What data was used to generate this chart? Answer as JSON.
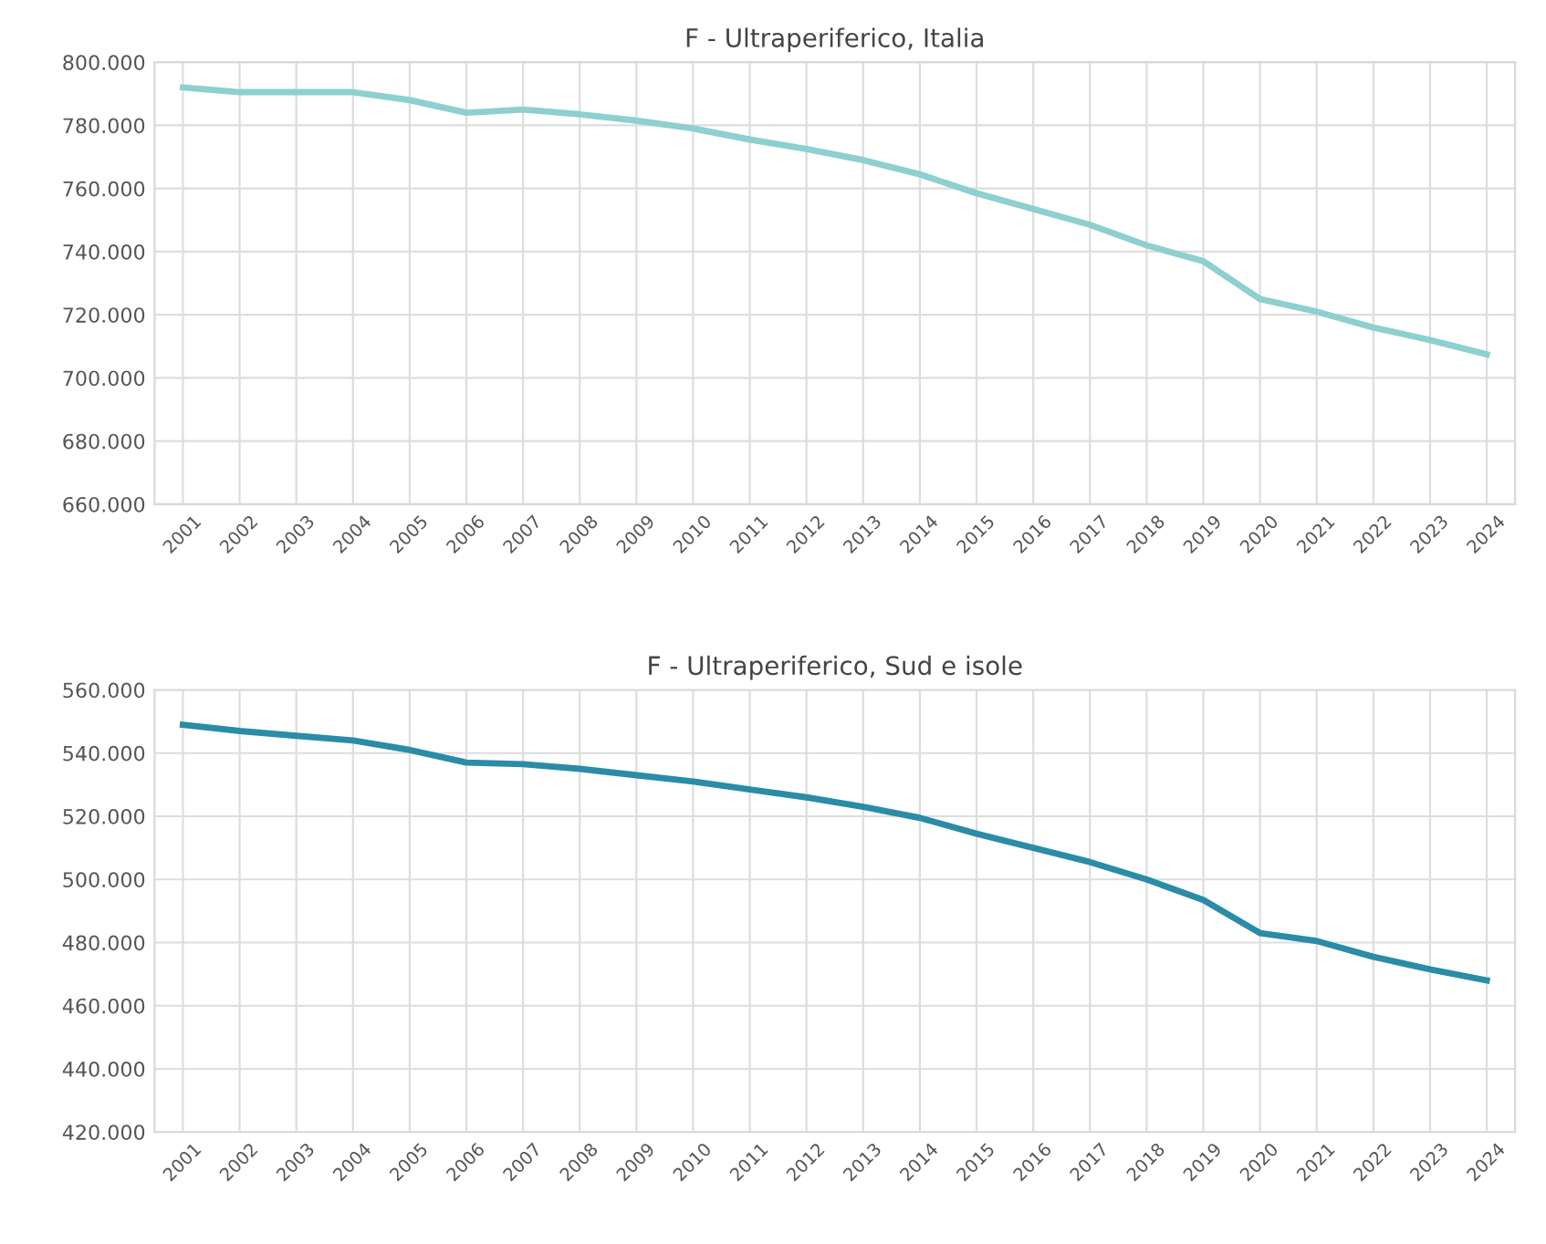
{
  "chart_data": [
    {
      "type": "line",
      "title": "F - Ultraperiferico, Italia",
      "categories": [
        "2001",
        "2002",
        "2003",
        "2004",
        "2005",
        "2006",
        "2007",
        "2008",
        "2009",
        "2010",
        "2011",
        "2012",
        "2013",
        "2014",
        "2015",
        "2016",
        "2017",
        "2018",
        "2019",
        "2020",
        "2021",
        "2022",
        "2023",
        "2024"
      ],
      "series": [
        {
          "color": "#8ecfcf",
          "values": [
            792000,
            790500,
            790500,
            790500,
            788000,
            784000,
            785000,
            783500,
            781500,
            779000,
            775500,
            772500,
            769000,
            764500,
            758500,
            753500,
            748500,
            742000,
            737000,
            725000,
            721000,
            716000,
            712000,
            707500
          ]
        }
      ],
      "ylim": [
        660000,
        800000
      ],
      "yticks": [
        {
          "value": 660000,
          "label": "660.000"
        },
        {
          "value": 680000,
          "label": "680.000"
        },
        {
          "value": 700000,
          "label": "700.000"
        },
        {
          "value": 720000,
          "label": "720.000"
        },
        {
          "value": 740000,
          "label": "740.000"
        },
        {
          "value": 760000,
          "label": "760.000"
        },
        {
          "value": 780000,
          "label": "780.000"
        },
        {
          "value": 800000,
          "label": "800.000"
        }
      ],
      "grid": true,
      "legend": false
    },
    {
      "type": "line",
      "title": "F - Ultraperiferico, Sud e isole",
      "categories": [
        "2001",
        "2002",
        "2003",
        "2004",
        "2005",
        "2006",
        "2007",
        "2008",
        "2009",
        "2010",
        "2011",
        "2012",
        "2013",
        "2014",
        "2015",
        "2016",
        "2017",
        "2018",
        "2019",
        "2020",
        "2021",
        "2022",
        "2023",
        "2024"
      ],
      "series": [
        {
          "color": "#2a8ca6",
          "values": [
            549000,
            547000,
            545500,
            544000,
            541000,
            537000,
            536500,
            535000,
            533000,
            531000,
            528500,
            526000,
            523000,
            519500,
            514500,
            510000,
            505500,
            500000,
            493500,
            483000,
            480500,
            475500,
            471500,
            468000
          ]
        }
      ],
      "ylim": [
        420000,
        560000
      ],
      "yticks": [
        {
          "value": 420000,
          "label": "420.000"
        },
        {
          "value": 440000,
          "label": "440.000"
        },
        {
          "value": 460000,
          "label": "460.000"
        },
        {
          "value": 480000,
          "label": "480.000"
        },
        {
          "value": 500000,
          "label": "500.000"
        },
        {
          "value": 520000,
          "label": "520.000"
        },
        {
          "value": 540000,
          "label": "540.000"
        },
        {
          "value": 560000,
          "label": "560.000"
        }
      ],
      "grid": true,
      "legend": false
    }
  ]
}
